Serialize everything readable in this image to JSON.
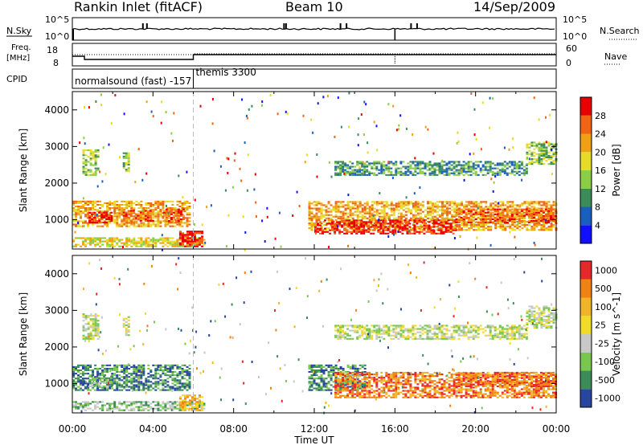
{
  "header": {
    "station": "Rankin Inlet (fitACF)",
    "beam": "Beam 10",
    "date": "14/Sep/2009"
  },
  "summary": {
    "nsky_label": "N.Sky",
    "nsky_ticks": [
      "10^5",
      "10^0"
    ],
    "nsearch_label": "N.Search",
    "nsearch_ticks": [
      "10^5",
      "10^0"
    ],
    "freq_label_line1": "Freq.",
    "freq_label_line2": "[MHz]",
    "freq_ticks": [
      "18",
      "8"
    ],
    "nave_label": "Nave",
    "nave_ticks": [
      "60",
      "0"
    ],
    "cpid_label": "CPID",
    "cpid_segments": [
      {
        "text": "normalsound (fast) -157",
        "start_hour": 0,
        "end_hour": 6
      },
      {
        "text": "themis 3300",
        "start_hour": 6,
        "end_hour": 24
      }
    ]
  },
  "chart_data": [
    {
      "type": "heatmap",
      "name": "power",
      "ylabel": "Slant Range [km]",
      "yticks": [
        1000,
        2000,
        3000,
        4000
      ],
      "ylim": [
        200,
        4500
      ],
      "xlim_hours": [
        0,
        24
      ],
      "colorbar_label": "Power [dB]",
      "colorbar_ticks": [
        "4",
        "8",
        "12",
        "16",
        "20",
        "24",
        "28"
      ],
      "colorbar_colors": [
        "#1010ff",
        "#1a5fbf",
        "#3c8c5a",
        "#8ccd46",
        "#e6dc28",
        "#f0a014",
        "#f06414",
        "#e60000"
      ],
      "regions": [
        {
          "t0": 0.5,
          "t1": 1.3,
          "r0": 2200,
          "r1": 2900,
          "level": 3
        },
        {
          "t0": 2.5,
          "t1": 2.8,
          "r0": 2300,
          "r1": 2800,
          "level": 3
        },
        {
          "t0": 0.0,
          "t1": 5.8,
          "r0": 800,
          "r1": 1500,
          "level": 5
        },
        {
          "t0": 0.8,
          "t1": 2.0,
          "r0": 900,
          "r1": 1200,
          "level": 7
        },
        {
          "t0": 2.5,
          "t1": 4.0,
          "r0": 950,
          "r1": 1250,
          "level": 6
        },
        {
          "t0": 4.5,
          "t1": 5.5,
          "r0": 900,
          "r1": 1300,
          "level": 6
        },
        {
          "t0": 0.0,
          "t1": 6.5,
          "r0": 250,
          "r1": 500,
          "level": 4
        },
        {
          "t0": 5.3,
          "t1": 6.5,
          "r0": 250,
          "r1": 700,
          "level": 7
        },
        {
          "t0": 11.7,
          "t1": 24.0,
          "r0": 700,
          "r1": 1500,
          "level": 5
        },
        {
          "t0": 12.0,
          "t1": 19.0,
          "r0": 600,
          "r1": 1000,
          "level": 7
        },
        {
          "t0": 19.0,
          "t1": 24.0,
          "r0": 900,
          "r1": 1300,
          "level": 6
        },
        {
          "t0": 13.0,
          "t1": 22.5,
          "r0": 2200,
          "r1": 2600,
          "level": 2
        },
        {
          "t0": 22.5,
          "t1": 24.0,
          "r0": 2500,
          "r1": 3100,
          "level": 3
        }
      ]
    },
    {
      "type": "heatmap",
      "name": "velocity",
      "ylabel": "Slant Range [km]",
      "yticks": [
        1000,
        2000,
        3000,
        4000
      ],
      "ylim": [
        200,
        4500
      ],
      "xlim_hours": [
        0,
        24
      ],
      "colorbar_label": "Velocity [m s^-1]",
      "colorbar_ticks": [
        "1000",
        "500",
        "100",
        "25",
        "-25",
        "-100",
        "-500",
        "-1000"
      ],
      "colorbar_colors": [
        "#2846a0",
        "#3c8c5a",
        "#78c850",
        "#c8c8c8",
        "#f0dc28",
        "#f0b428",
        "#f08214",
        "#e62828"
      ],
      "regions": [
        {
          "t0": 0.5,
          "t1": 1.3,
          "r0": 2200,
          "r1": 2900,
          "level": 3
        },
        {
          "t0": 2.5,
          "t1": 2.8,
          "r0": 2300,
          "r1": 2800,
          "level": 3
        },
        {
          "t0": 0.0,
          "t1": 5.8,
          "r0": 800,
          "r1": 1500,
          "level": 1
        },
        {
          "t0": 0.8,
          "t1": 2.0,
          "r0": 900,
          "r1": 1200,
          "level": 2
        },
        {
          "t0": 0.0,
          "t1": 6.5,
          "r0": 250,
          "r1": 500,
          "level": 2
        },
        {
          "t0": 5.3,
          "t1": 6.5,
          "r0": 250,
          "r1": 700,
          "level": 5
        },
        {
          "t0": 11.7,
          "t1": 14.5,
          "r0": 800,
          "r1": 1500,
          "level": 1
        },
        {
          "t0": 13.0,
          "t1": 24.0,
          "r0": 600,
          "r1": 1300,
          "level": 6
        },
        {
          "t0": 19.0,
          "t1": 24.0,
          "r0": 900,
          "r1": 1300,
          "level": 6
        },
        {
          "t0": 13.0,
          "t1": 22.5,
          "r0": 2200,
          "r1": 2600,
          "level": 3
        },
        {
          "t0": 22.5,
          "t1": 24.0,
          "r0": 2500,
          "r1": 3100,
          "level": 3
        }
      ]
    }
  ],
  "xaxis": {
    "ticks": [
      "00:00",
      "04:00",
      "08:00",
      "12:00",
      "16:00",
      "20:00",
      "00:00"
    ],
    "label": "Time UT"
  }
}
